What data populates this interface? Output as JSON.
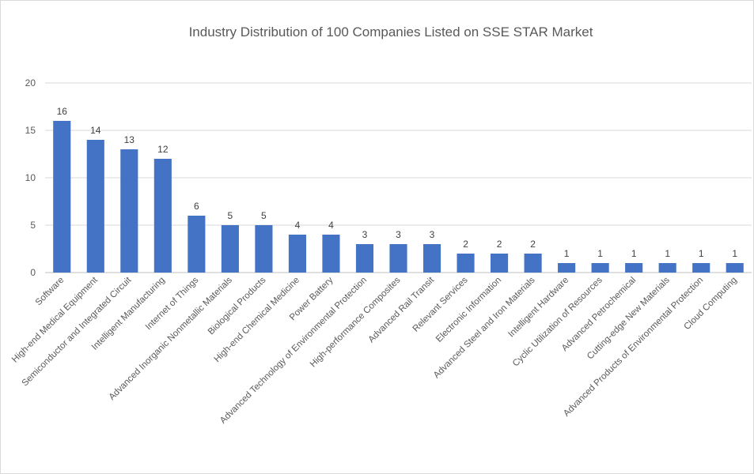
{
  "chart_data": {
    "type": "bar",
    "title": "Industry Distribution of 100 Companies Listed on SSE STAR Market",
    "xlabel": "",
    "ylabel": "",
    "ylim": [
      0,
      20
    ],
    "yticks": [
      "0",
      "5",
      "10",
      "15",
      "20"
    ],
    "grid": true,
    "legend": "none",
    "bar_color": "#4472C4",
    "categories": [
      "Software",
      "High-end Medical Equipment",
      "Semiconductor and Integrated Circuit",
      "Intelligent Manufacturing",
      "Internet of Things",
      "Advanced Inorganic Nonmetallic Materials",
      "Biological Products",
      "High-end Chemical Medicine",
      "Power Battery",
      "Advanced Technology of Environmental Protection",
      "High-performance Composites",
      "Advanced Rail Transit",
      "Relevant Services",
      "Electronic Information",
      "Advanced Steel and Iron Materials",
      "Intelligent Hardware",
      "Cyclic Utilization of Resources",
      "Advanced Petrochemical",
      "Cutting-edge New Materials",
      "Advanced Products of Environmental Protection",
      "Cloud Computing"
    ],
    "values": [
      16,
      14,
      13,
      12,
      6,
      5,
      5,
      4,
      4,
      3,
      3,
      3,
      2,
      2,
      2,
      1,
      1,
      1,
      1,
      1,
      1
    ]
  }
}
